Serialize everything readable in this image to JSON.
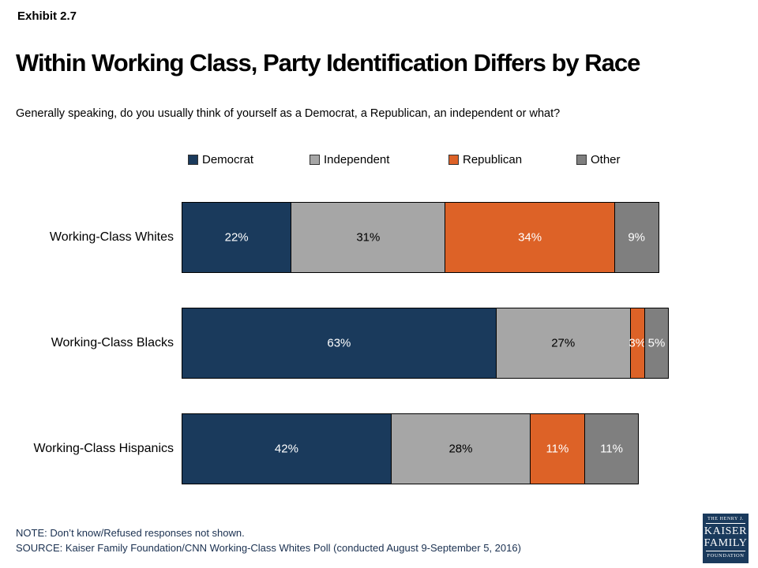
{
  "header": {
    "exhibit": "Exhibit 2.7",
    "title": "Within Working Class, Party Identification Differs by Race",
    "subtitle": "Generally speaking, do you usually think of yourself as a Democrat, a Republican, an independent or what?"
  },
  "chart_data": {
    "type": "bar",
    "stacked": true,
    "orientation": "horizontal",
    "title": "Within Working Class, Party Identification Differs by Race",
    "categories": [
      "Working-Class Whites",
      "Working-Class Blacks",
      "Working-Class Hispanics"
    ],
    "series": [
      {
        "name": "Democrat",
        "color": "#1a3a5c",
        "label_color": "#ffffff",
        "values": [
          22,
          63,
          42
        ]
      },
      {
        "name": "Independent",
        "color": "#a6a6a6",
        "label_color": "#000000",
        "values": [
          31,
          27,
          28
        ]
      },
      {
        "name": "Republican",
        "color": "#dd6227",
        "label_color": "#ffffff",
        "values": [
          34,
          3,
          11
        ]
      },
      {
        "name": "Other",
        "color": "#7f7f7f",
        "label_color": "#ffffff",
        "values": [
          9,
          5,
          11
        ]
      }
    ],
    "value_suffix": "%",
    "xlim": [
      0,
      100
    ],
    "legend_position": "top",
    "grid": false
  },
  "colors": {
    "democrat_navy": "#1a3a5c",
    "independent_gray": "#a6a6a6",
    "republican_orange": "#dd6227",
    "other_gray": "#7f7f7f",
    "segment_border": "#000000",
    "footer_text": "#1a3050"
  },
  "footer": {
    "note": "NOTE: Don’t know/Refused responses not shown.",
    "source": "SOURCE: Kaiser Family Foundation/CNN Working-Class Whites Poll (conducted August 9-September 5, 2016)"
  },
  "logo": {
    "line1": "THE HENRY J.",
    "line2": "KAISER",
    "line3": "FAMILY",
    "line4": "FOUNDATION"
  }
}
